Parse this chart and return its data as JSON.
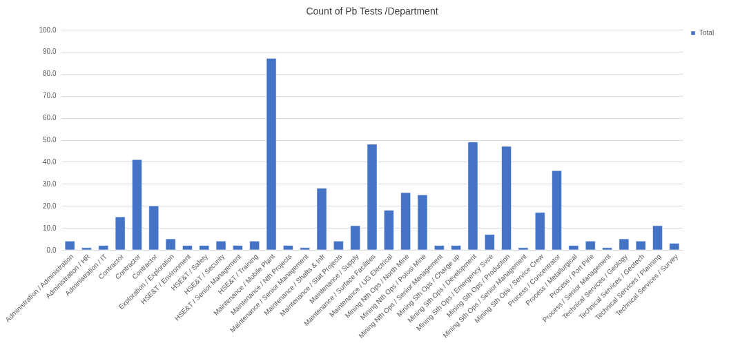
{
  "chart_data": {
    "type": "bar",
    "title": "Count of Pb Tests /Department",
    "categories": [
      "Administration / Administration",
      "Administration / HR",
      "Administration / IT",
      "Contractor",
      "Contractor",
      "Contractor",
      "Exploration / Exploration",
      "HSE&T / Environment",
      "HSE&T / Safety",
      "HSE&T / Security",
      "HSE&T / Senior Management",
      "HSE&T / Training",
      "Maintenance / Mobile Plant",
      "Maintenance / Nth Projects",
      "Maintenance / Senior Management",
      "Maintenance / Shafts & Infr",
      "Maintenance / Stat Projects",
      "Maintenance / Supply",
      "Maintenance / Surface Facilities",
      "Maintenance / UG Electrical",
      "Mining Nth Ops / North Mine",
      "Mining Nth Ops / Potosi Mine",
      "Mining Nth Ops / Senior Management",
      "Mining Sth Ops / Charge up",
      "Mining Sth Ops / Development",
      "Mining Sth Ops / Emergency Svce",
      "Mining Sth Ops / Production",
      "Mining Sth Ops / Senior Management",
      "Mining Sth Ops / Service Crew",
      "Process / Concentrator",
      "Process / Metallurgical",
      "Process / Port Pirie",
      "Process / Senior Management",
      "Technical  Services / Geology",
      "Technical  Services / Geotech",
      "Technical  Services / Planning",
      "Technical  Services / Survey"
    ],
    "series": [
      {
        "name": "Total",
        "color": "#4472c4",
        "values": [
          4,
          1,
          2,
          15,
          41,
          20,
          5,
          2,
          2,
          4,
          2,
          4,
          87,
          2,
          1,
          28,
          4,
          11,
          48,
          18,
          26,
          25,
          2,
          2,
          49,
          7,
          47,
          1,
          17,
          36,
          2,
          4,
          1,
          5,
          4,
          11,
          3
        ]
      }
    ],
    "ylim": [
      0,
      100
    ],
    "yticks": [
      {
        "value": 0,
        "label": "0.0"
      },
      {
        "value": 10,
        "label": "10.0"
      },
      {
        "value": 20,
        "label": "20.0"
      },
      {
        "value": 30,
        "label": "30.0"
      },
      {
        "value": 40,
        "label": "40.0"
      },
      {
        "value": 50,
        "label": "50.0"
      },
      {
        "value": 60,
        "label": "60.0"
      },
      {
        "value": 70,
        "label": "70.0"
      },
      {
        "value": 80,
        "label": "80.0"
      },
      {
        "value": 90,
        "label": "90.0"
      },
      {
        "value": 100,
        "label": "100.0"
      }
    ],
    "grid": "y",
    "legend": "right"
  }
}
